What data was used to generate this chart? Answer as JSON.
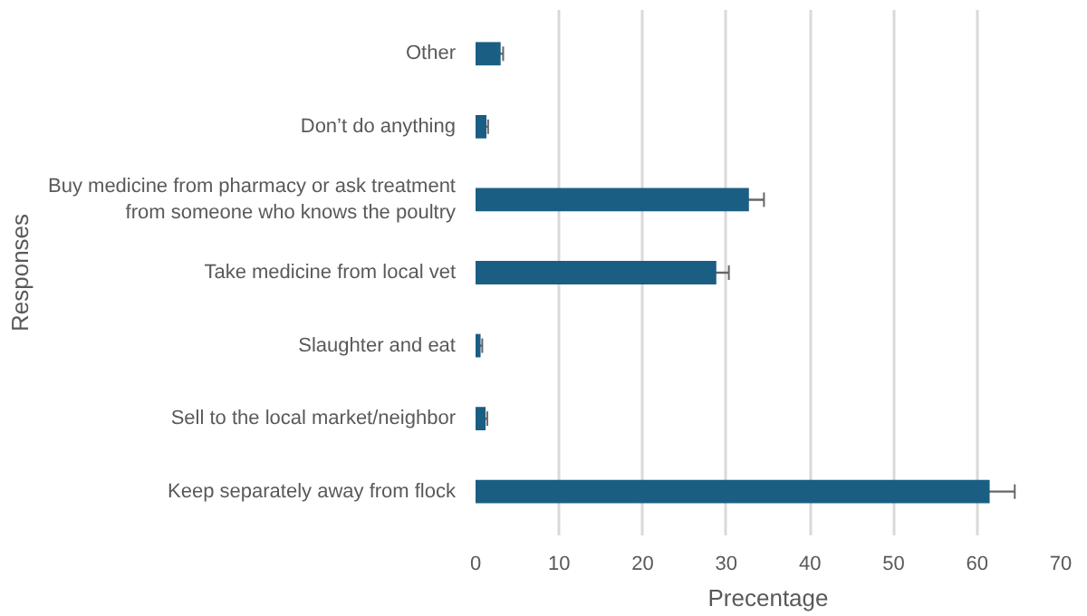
{
  "chart_data": {
    "type": "bar",
    "orientation": "horizontal",
    "xlabel": "Precentage",
    "ylabel": "Responses",
    "categories": [
      "Other",
      "Don’t do anything",
      "Buy medicine from pharmacy or ask treatment\nfrom someone who knows the poultry",
      "Take medicine from local vet",
      "Slaughter and eat",
      "Sell to the local market/neighbor",
      "Keep separately away from flock"
    ],
    "values": [
      3.0,
      1.3,
      32.7,
      28.8,
      0.6,
      1.2,
      61.5
    ],
    "errors": [
      0.3,
      0.2,
      1.8,
      1.5,
      0.2,
      0.2,
      3.0
    ],
    "color": "#1b5e83",
    "xlim": [
      0,
      70
    ],
    "xticks": [
      0,
      10,
      20,
      30,
      40,
      50,
      60,
      70
    ],
    "grid": "x"
  }
}
